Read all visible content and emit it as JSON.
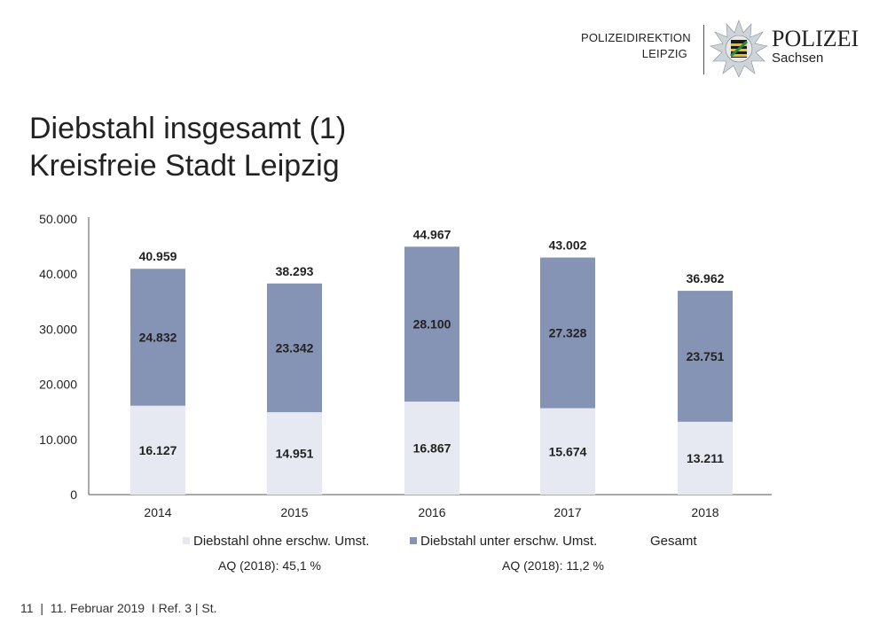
{
  "header": {
    "org_line1": "POLIZEIDIREKTION",
    "org_line2": "LEIPZIG",
    "brand": "POLIZEI",
    "brand_sub": "Sachsen"
  },
  "title": {
    "line1": "Diebstahl insgesamt (1)",
    "line2": "Kreisfreie Stadt Leipzig"
  },
  "chart_data": {
    "type": "bar",
    "stacked": true,
    "categories": [
      "2014",
      "2015",
      "2016",
      "2017",
      "2018"
    ],
    "series": [
      {
        "name": "Diebstahl ohne erschw. Umst.",
        "values": [
          16127,
          14951,
          16867,
          15674,
          13211
        ],
        "labels": [
          "16.127",
          "14.951",
          "16.867",
          "15.674",
          "13.211"
        ],
        "color": "#e6e9f1"
      },
      {
        "name": "Diebstahl unter erschw. Umst.",
        "values": [
          24832,
          23342,
          28100,
          27328,
          23751
        ],
        "labels": [
          "24.832",
          "23.342",
          "28.100",
          "27.328",
          "23.751"
        ],
        "color": "#8593b5"
      }
    ],
    "totals": {
      "name": "Gesamt",
      "values": [
        40959,
        38293,
        44967,
        43002,
        36962
      ],
      "labels": [
        "40.959",
        "38.293",
        "44.967",
        "43.002",
        "36.962"
      ]
    },
    "ylim": [
      0,
      50000
    ],
    "yticks": [
      0,
      10000,
      20000,
      30000,
      40000,
      50000
    ],
    "ytick_labels": [
      "0",
      "10.000",
      "20.000",
      "30.000",
      "40.000",
      "50.000"
    ],
    "grid": false,
    "legend_position": "bottom"
  },
  "legend": {
    "item1": "Diebstahl ohne erschw. Umst.",
    "item2": "Diebstahl unter erschw. Umst.",
    "item3": "Gesamt"
  },
  "aq": {
    "left": "AQ (2018): 45,1 %",
    "right": "AQ (2018): 11,2 %"
  },
  "footer": {
    "text": "11  |  11. Februar 2019  I Ref. 3 | St."
  }
}
